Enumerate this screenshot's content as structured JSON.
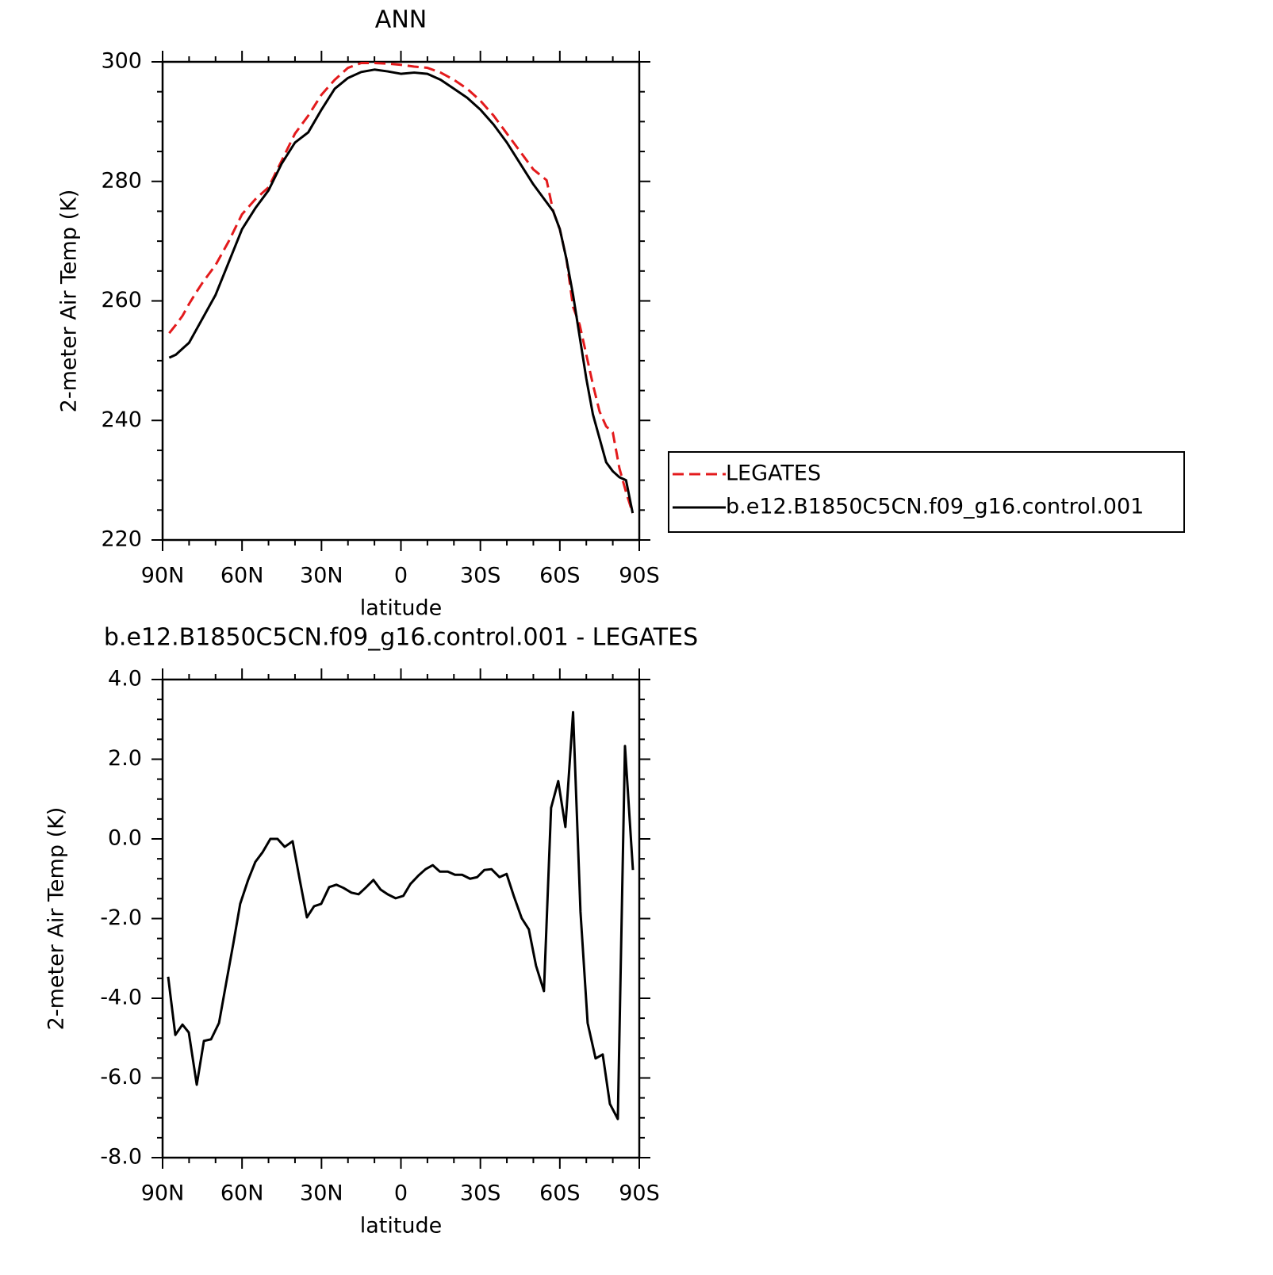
{
  "chart_data": [
    {
      "type": "line",
      "title": "ANN",
      "x_label": "latitude",
      "y_label": "2-meter Air Temp (K)",
      "x": [
        87.5,
        85,
        82.5,
        80,
        77.5,
        75,
        70,
        65,
        60,
        55,
        50,
        45,
        40,
        35,
        30,
        25,
        20,
        15,
        10,
        5,
        0,
        -5,
        -10,
        -15,
        -20,
        -25,
        -30,
        -35,
        -40,
        -45,
        -50,
        -55,
        -57.5,
        -60,
        -62.5,
        -65,
        -67.5,
        -70,
        -72.5,
        -75,
        -77.5,
        -80,
        -82.5,
        -85,
        -87.5
      ],
      "series": [
        {
          "name": "LEGATES",
          "color": "#e31a1c",
          "dash": true,
          "values": [
            254.6,
            256,
            257.5,
            259.5,
            261.3,
            263,
            266,
            270,
            274.5,
            277,
            279,
            283.5,
            288,
            291,
            294.5,
            297,
            299,
            299.8,
            299.8,
            299.7,
            299.5,
            299.2,
            299,
            298.2,
            297,
            295.5,
            293.5,
            291,
            288,
            285,
            282,
            280.2,
            275,
            272,
            267,
            259,
            256,
            251,
            246,
            241.5,
            239,
            238,
            232,
            228,
            224.5
          ]
        },
        {
          "name": "b.e12.B1850C5CN.f09_g16.control.001",
          "color": "#000000",
          "dash": false,
          "values": [
            250.5,
            251,
            252,
            253,
            255,
            257,
            261,
            266.5,
            272,
            275.5,
            278.5,
            283,
            286.5,
            288.2,
            292,
            295.5,
            297.3,
            298.3,
            298.7,
            298.4,
            298,
            298.2,
            298,
            297,
            295.5,
            294,
            292,
            289.5,
            286.5,
            283,
            279.5,
            276.5,
            275,
            272,
            267,
            261,
            254,
            247,
            241,
            237,
            233,
            231.5,
            230.5,
            230,
            224.5
          ]
        }
      ],
      "xlim": [
        90,
        -90
      ],
      "xticks": [
        {
          "value": 90,
          "label": "90N"
        },
        {
          "value": 60,
          "label": "60N"
        },
        {
          "value": 30,
          "label": "30N"
        },
        0,
        {
          "value": -30,
          "label": "30S"
        },
        {
          "value": -60,
          "label": "60S"
        },
        {
          "value": -90,
          "label": "90S"
        }
      ],
      "xminorticks": [
        80,
        70,
        50,
        40,
        20,
        10,
        -10,
        -20,
        -40,
        -50,
        -70,
        -80
      ],
      "ylim": [
        220,
        300
      ],
      "yticks": [
        220,
        240,
        260,
        280,
        300
      ],
      "yminorticks": [
        225,
        230,
        235,
        245,
        250,
        255,
        265,
        270,
        275,
        285,
        290,
        295
      ],
      "legend": "right"
    },
    {
      "type": "line",
      "title": "b.e12.B1850C5CN.f09_g16.control.001 - LEGATES",
      "x_label": "latitude",
      "y_label": "2-meter Air Temp (K)",
      "x": [
        87.9,
        85.2,
        82.5,
        80.1,
        77.1,
        74.4,
        71.7,
        68.7,
        66,
        63.3,
        60.7,
        57.7,
        55,
        52.3,
        49.3,
        46.6,
        43.9,
        40.9,
        38.2,
        35.5,
        32.8,
        30.1,
        27.1,
        24.4,
        21.7,
        18.7,
        16,
        13.4,
        10.4,
        7.7,
        5,
        2,
        -0.9,
        -3.6,
        -6.6,
        -9.3,
        -12,
        -14.7,
        -17.7,
        -20.4,
        -23.1,
        -26.1,
        -28.8,
        -31.5,
        -34.2,
        -37.2,
        -39.9,
        -42.6,
        -45.6,
        -48.3,
        -51,
        -54,
        -56.7,
        -59.4,
        -62.1,
        -65,
        -67.8,
        -70.5,
        -73.5,
        -76.2,
        -78.9,
        -81.9,
        -84.6,
        -87.6
      ],
      "series": [
        {
          "color": "#000000",
          "dash": false,
          "values": [
            -3.46,
            -4.92,
            -4.66,
            -4.86,
            -6.17,
            -5.07,
            -5.03,
            -4.62,
            -3.62,
            -2.63,
            -1.63,
            -1.03,
            -0.58,
            -0.34,
            0,
            0,
            -0.2,
            -0.06,
            -1.03,
            -1.97,
            -1.69,
            -1.63,
            -1.21,
            -1.15,
            -1.23,
            -1.35,
            -1.39,
            -1.23,
            -1.03,
            -1.27,
            -1.39,
            -1.49,
            -1.43,
            -1.13,
            -0.92,
            -0.76,
            -0.66,
            -0.82,
            -0.82,
            -0.9,
            -0.9,
            -1.0,
            -0.96,
            -0.78,
            -0.76,
            -0.96,
            -0.88,
            -1.43,
            -1.99,
            -2.27,
            -3.18,
            -3.82,
            0.78,
            1.45,
            0.3,
            3.18,
            -1.83,
            -4.62,
            -5.51,
            -5.41,
            -6.65,
            -7.03,
            2.33,
            -0.78
          ]
        }
      ],
      "xlim": [
        90,
        -90
      ],
      "xticks": [
        {
          "value": 90,
          "label": "90N"
        },
        {
          "value": 60,
          "label": "60N"
        },
        {
          "value": 30,
          "label": "30N"
        },
        0,
        {
          "value": -30,
          "label": "30S"
        },
        {
          "value": -60,
          "label": "60S"
        },
        {
          "value": -90,
          "label": "90S"
        }
      ],
      "xminorticks": [
        80,
        70,
        50,
        40,
        20,
        10,
        -10,
        -20,
        -40,
        -50,
        -70,
        -80
      ],
      "ylim": [
        -8,
        4
      ],
      "yticks": [
        {
          "value": -8,
          "label": "-8.0"
        },
        {
          "value": -6,
          "label": "-6.0"
        },
        {
          "value": -4,
          "label": "-4.0"
        },
        {
          "value": -2,
          "label": "-2.0"
        },
        {
          "value": 0,
          "label": "0.0"
        },
        {
          "value": 2,
          "label": "2.0"
        },
        {
          "value": 4,
          "label": "4.0"
        }
      ],
      "yminorticks": [
        -7.5,
        -7,
        -6.5,
        -5.5,
        -5,
        -4.5,
        -3.5,
        -3,
        -2.5,
        -1.5,
        -1,
        -0.5,
        0.5,
        1,
        1.5,
        2.5,
        3,
        3.5
      ]
    }
  ]
}
